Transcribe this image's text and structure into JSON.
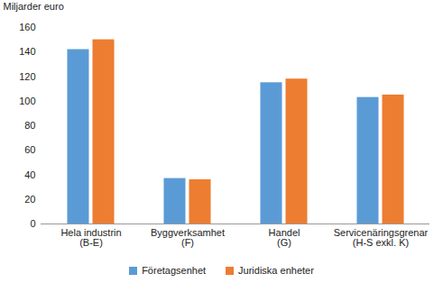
{
  "chart_data": {
    "type": "bar",
    "y_label": "Miljarder euro",
    "categories": [
      "Hela industrin\n(B-E)",
      "Byggverksamhet\n(F)",
      "Handel\n(G)",
      "Servicenäringsgrenar\n(H-S exkl. K)"
    ],
    "series": [
      {
        "name": "Företagsenhet",
        "color": "#5b9bd5",
        "values": [
          142,
          37,
          115,
          103
        ]
      },
      {
        "name": "Juridiska enheter",
        "color": "#ed7d31",
        "values": [
          150,
          36,
          118,
          105
        ]
      }
    ],
    "ylim": [
      0,
      160
    ],
    "yticks": [
      0,
      20,
      40,
      60,
      80,
      100,
      120,
      140,
      160
    ],
    "grid": false,
    "legend": "bottom"
  }
}
